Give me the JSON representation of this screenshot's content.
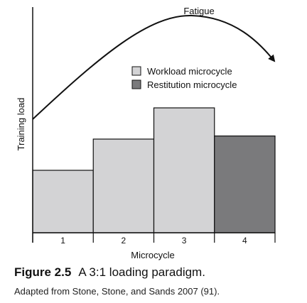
{
  "chart_data": {
    "type": "bar",
    "categories": [
      "1",
      "2",
      "3",
      "4"
    ],
    "values": [
      2,
      3,
      4,
      3.1
    ],
    "series_types": [
      "Workload microcycle",
      "Workload microcycle",
      "Workload microcycle",
      "Restitution microcycle"
    ],
    "xlabel": "Microcycle",
    "ylabel": "Training load",
    "ylim": [
      0,
      4.8
    ],
    "grid": false,
    "legend": {
      "placement": "top-right",
      "entries": [
        {
          "label": "Workload microcycle",
          "color": "#d3d3d5"
        },
        {
          "label": "Restitution microcycle",
          "color": "#7a7a7c"
        }
      ]
    },
    "annotation": {
      "curve_label": "Fatigue"
    }
  },
  "caption": {
    "label": "Figure 2.5",
    "title": "A 3:1 loading paradigm.",
    "source": "Adapted from Stone, Stone, and Sands 2007 (91)."
  }
}
